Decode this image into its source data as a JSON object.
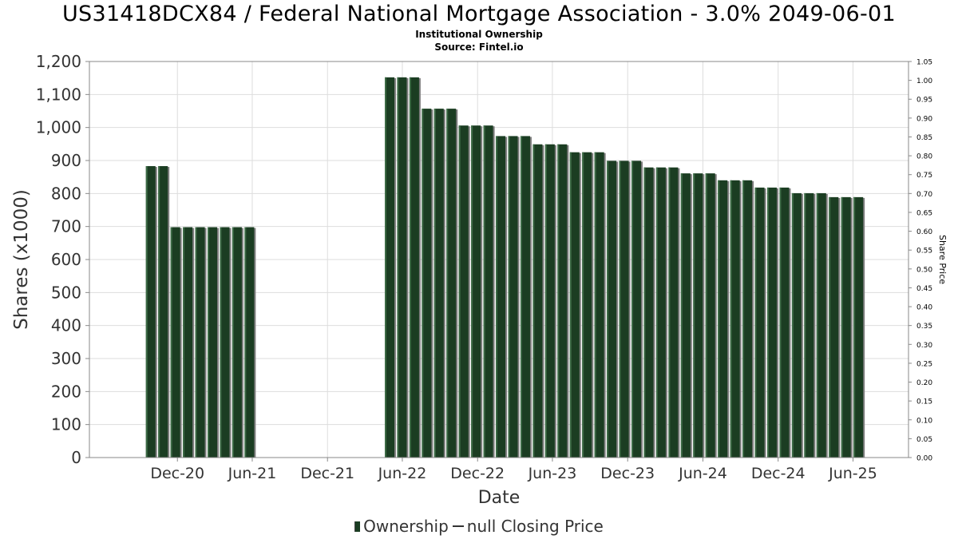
{
  "title": "US31418DCX84 / Federal National Mortgage Association - 3.0% 2049-06-01",
  "subtitle": "Institutional Ownership",
  "source": "Source: Fintel.io",
  "legend": {
    "ownership": "Ownership",
    "price": "null Closing Price"
  },
  "colors": {
    "bar": "#1b3d22",
    "bar_highlight": "#3c6a45",
    "bar_shadow": "#7d7d7d",
    "grid": "#dddddd"
  },
  "chart_data": {
    "type": "bar",
    "xlabel": "Date",
    "ylabel": "Shares (x1000)",
    "y2label": "Share Price",
    "ylim": [
      0,
      1200
    ],
    "y2lim": [
      0,
      1.05
    ],
    "yticks": [
      "0",
      "100",
      "200",
      "300",
      "400",
      "500",
      "600",
      "700",
      "800",
      "900",
      "1,000",
      "1,100",
      "1,200"
    ],
    "y2ticks": [
      "0.00",
      "0.05",
      "0.10",
      "0.15",
      "0.20",
      "0.25",
      "0.30",
      "0.35",
      "0.40",
      "0.45",
      "0.50",
      "0.55",
      "0.60",
      "0.65",
      "0.70",
      "0.75",
      "0.80",
      "0.85",
      "0.90",
      "0.95",
      "1.00",
      "1.05"
    ],
    "x_domain": [
      "2020-05-01",
      "2025-10-14"
    ],
    "xticks": [
      {
        "date": "2020-12-01",
        "label": "Dec-20"
      },
      {
        "date": "2021-06-01",
        "label": "Jun-21"
      },
      {
        "date": "2021-12-01",
        "label": "Dec-21"
      },
      {
        "date": "2022-06-01",
        "label": "Jun-22"
      },
      {
        "date": "2022-12-01",
        "label": "Dec-22"
      },
      {
        "date": "2023-06-01",
        "label": "Jun-23"
      },
      {
        "date": "2023-12-01",
        "label": "Dec-23"
      },
      {
        "date": "2024-06-01",
        "label": "Jun-24"
      },
      {
        "date": "2024-12-01",
        "label": "Dec-24"
      },
      {
        "date": "2025-06-01",
        "label": "Jun-25"
      }
    ],
    "series": [
      {
        "name": "Ownership",
        "points": [
          {
            "x": "2020-09-27",
            "y": 883
          },
          {
            "x": "2020-10-27",
            "y": 883
          },
          {
            "x": "2020-11-26",
            "y": 698
          },
          {
            "x": "2020-12-26",
            "y": 698
          },
          {
            "x": "2021-01-25",
            "y": 698
          },
          {
            "x": "2021-02-24",
            "y": 698
          },
          {
            "x": "2021-03-26",
            "y": 698
          },
          {
            "x": "2021-04-25",
            "y": 698
          },
          {
            "x": "2021-05-25",
            "y": 698
          },
          {
            "x": "2022-05-01",
            "y": 1152
          },
          {
            "x": "2022-05-31",
            "y": 1152
          },
          {
            "x": "2022-06-30",
            "y": 1152
          },
          {
            "x": "2022-07-30",
            "y": 1057
          },
          {
            "x": "2022-08-29",
            "y": 1057
          },
          {
            "x": "2022-09-28",
            "y": 1057
          },
          {
            "x": "2022-10-28",
            "y": 1006
          },
          {
            "x": "2022-11-27",
            "y": 1006
          },
          {
            "x": "2022-12-27",
            "y": 1006
          },
          {
            "x": "2023-01-26",
            "y": 974
          },
          {
            "x": "2023-02-25",
            "y": 974
          },
          {
            "x": "2023-03-27",
            "y": 974
          },
          {
            "x": "2023-04-26",
            "y": 949
          },
          {
            "x": "2023-05-26",
            "y": 949
          },
          {
            "x": "2023-06-25",
            "y": 949
          },
          {
            "x": "2023-07-25",
            "y": 925
          },
          {
            "x": "2023-08-24",
            "y": 925
          },
          {
            "x": "2023-09-23",
            "y": 925
          },
          {
            "x": "2023-10-23",
            "y": 899
          },
          {
            "x": "2023-11-22",
            "y": 899
          },
          {
            "x": "2023-12-22",
            "y": 899
          },
          {
            "x": "2024-01-21",
            "y": 879
          },
          {
            "x": "2024-02-20",
            "y": 879
          },
          {
            "x": "2024-03-21",
            "y": 879
          },
          {
            "x": "2024-04-20",
            "y": 861
          },
          {
            "x": "2024-05-20",
            "y": 861
          },
          {
            "x": "2024-06-19",
            "y": 861
          },
          {
            "x": "2024-07-19",
            "y": 840
          },
          {
            "x": "2024-08-18",
            "y": 840
          },
          {
            "x": "2024-09-17",
            "y": 840
          },
          {
            "x": "2024-10-17",
            "y": 818
          },
          {
            "x": "2024-11-16",
            "y": 818
          },
          {
            "x": "2024-12-16",
            "y": 818
          },
          {
            "x": "2025-01-15",
            "y": 801
          },
          {
            "x": "2025-02-14",
            "y": 801
          },
          {
            "x": "2025-03-16",
            "y": 801
          },
          {
            "x": "2025-04-15",
            "y": 789
          },
          {
            "x": "2025-05-15",
            "y": 789
          },
          {
            "x": "2025-06-14",
            "y": 789
          }
        ]
      }
    ],
    "grid": true,
    "legend_position": "bottom"
  }
}
